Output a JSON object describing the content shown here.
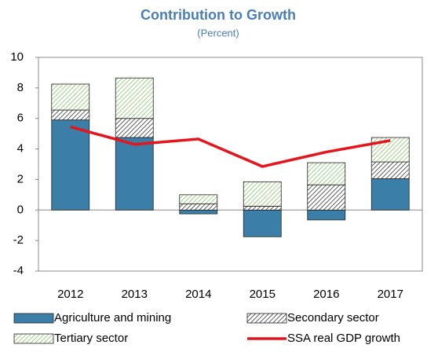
{
  "chart_data": {
    "type": "bar",
    "title": "Contribution to Growth",
    "subtitle": "(Percent)",
    "categories": [
      "2012",
      "2013",
      "2014",
      "2015",
      "2016",
      "2017"
    ],
    "series": [
      {
        "name": "Agriculture and mining",
        "type": "bar",
        "color": "#3b7fa8",
        "pattern": "solid",
        "values": [
          5.9,
          4.75,
          -0.25,
          -1.75,
          -0.65,
          2.05
        ]
      },
      {
        "name": "Secondary sector",
        "type": "bar",
        "color": "#333333",
        "pattern": "hatch",
        "values": [
          0.65,
          1.25,
          0.4,
          0.25,
          1.65,
          1.1
        ]
      },
      {
        "name": "Tertiary sector",
        "type": "bar",
        "color": "#8cc46a",
        "pattern": "hatch",
        "values": [
          1.7,
          2.65,
          0.6,
          1.6,
          1.45,
          1.6
        ]
      },
      {
        "name": "SSA real GDP growth",
        "type": "line",
        "color": "#e8141b",
        "values": [
          5.45,
          4.3,
          4.65,
          2.85,
          3.8,
          4.55
        ]
      }
    ],
    "ylim": [
      -4,
      10
    ],
    "yticks": [
      -4,
      -2,
      0,
      2,
      4,
      6,
      8,
      10
    ],
    "grid": false
  }
}
